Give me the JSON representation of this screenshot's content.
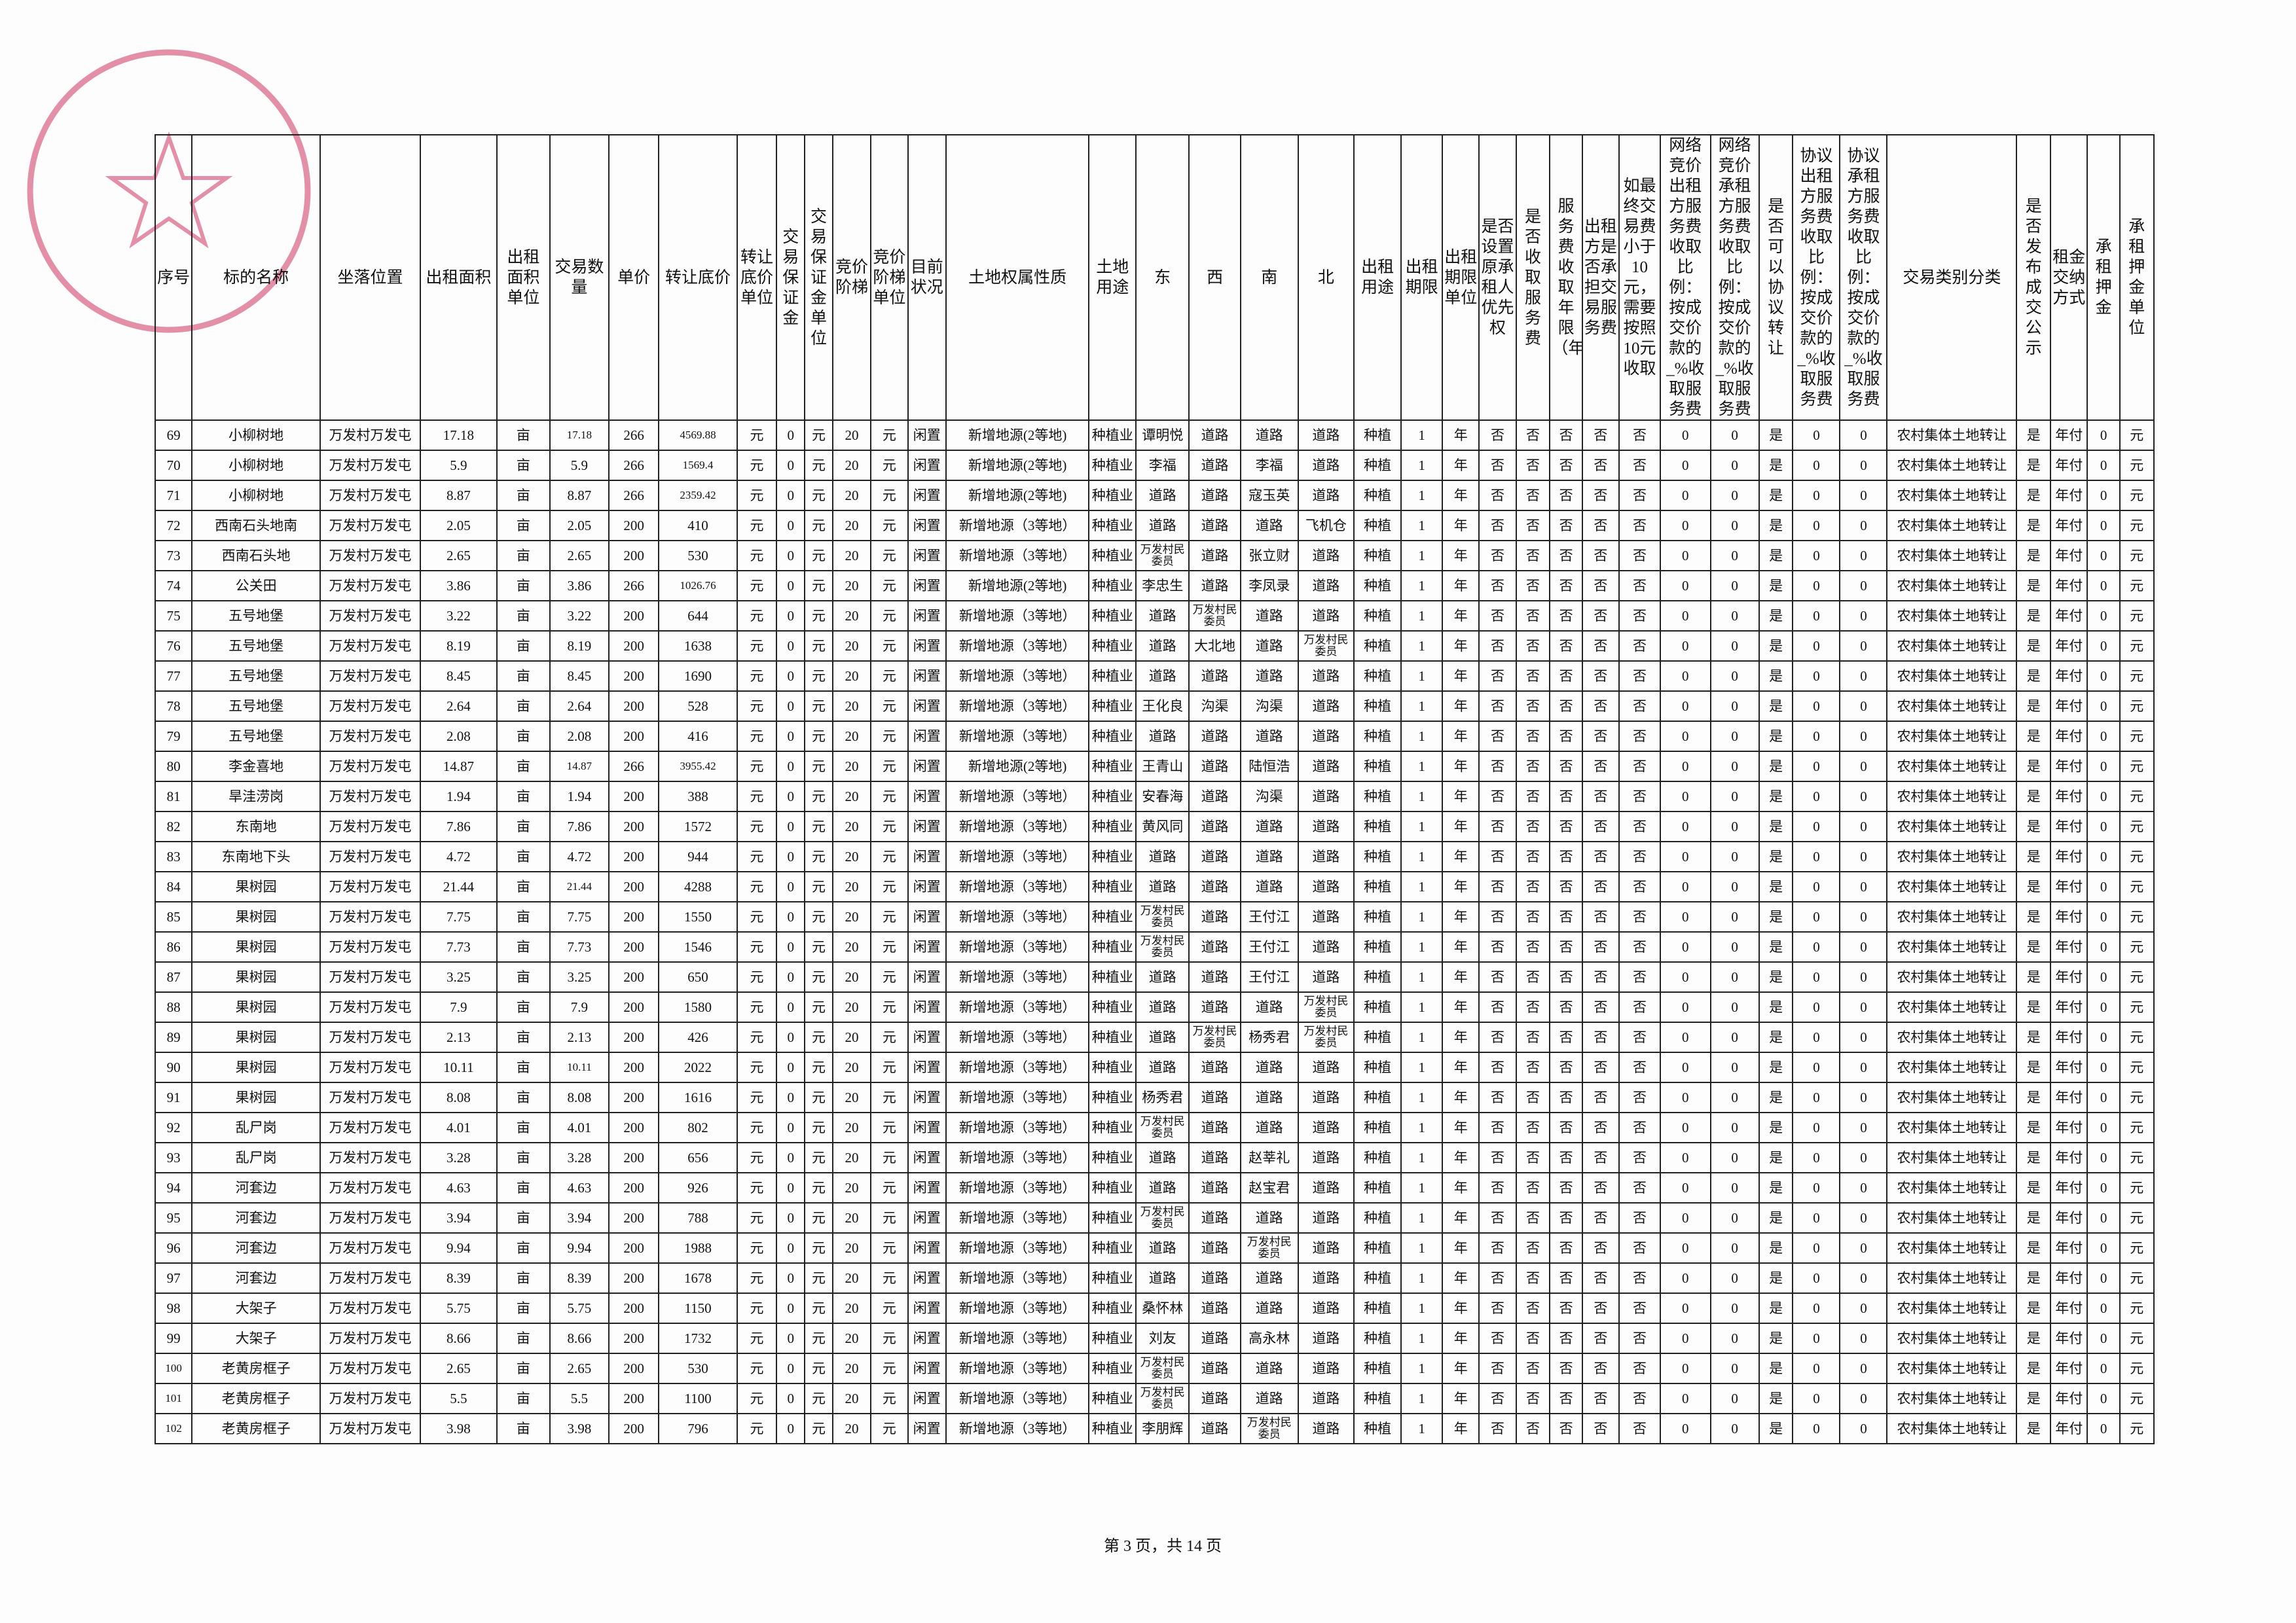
{
  "table": {
    "headers": [
      "序号",
      "标的名称",
      "坐落位置",
      "出租面积",
      "出租面积单位",
      "交易数量",
      "单价",
      "转让底价",
      "转让底价单位",
      "交易保证金",
      "交易保证金单位",
      "竞价阶梯",
      "竞价阶梯单位",
      "目前状况",
      "土地权属性质",
      "土地用途",
      "东",
      "西",
      "南",
      "北",
      "出租用途",
      "出租期限",
      "出租期限单位",
      "是否设置原承租人优先权",
      "是否收取服务费",
      "服务费收取年限（年）",
      "出租方是否承担交易服务费",
      "如最终交易费小于10元，需要按照10元收取",
      "网络竞价出租方服务费收取比例：按成交价款的_%收取服务费",
      "网络竞价承租方服务费收取比例：按成交价款的_%收取服务费",
      "是否可以协议转让",
      "协议出租方服务费收取比例：按成交价款的_%收取服务费",
      "协议承租方服务费收取比例：按成交价款的_%收取服务费",
      "交易类别分类",
      "是否发布成交公示",
      "租金交纳方式",
      "承租押金",
      "承租押金单位"
    ],
    "rows": [
      [
        "69",
        "小柳树地",
        "万发村万发屯",
        "17.18",
        "亩",
        "17.18",
        "266",
        "4569.88",
        "元",
        "0",
        "元",
        "20",
        "元",
        "闲置",
        "新增地源(2等地)",
        "种植业",
        "谭明悦",
        "道路",
        "道路",
        "道路",
        "种植",
        "1",
        "年",
        "否",
        "否",
        "否",
        "否",
        "否",
        "0",
        "0",
        "是",
        "0",
        "0",
        "农村集体土地转让",
        "是",
        "年付",
        "0",
        "元"
      ],
      [
        "70",
        "小柳树地",
        "万发村万发屯",
        "5.9",
        "亩",
        "5.9",
        "266",
        "1569.4",
        "元",
        "0",
        "元",
        "20",
        "元",
        "闲置",
        "新增地源(2等地)",
        "种植业",
        "李福",
        "道路",
        "李福",
        "道路",
        "种植",
        "1",
        "年",
        "否",
        "否",
        "否",
        "否",
        "否",
        "0",
        "0",
        "是",
        "0",
        "0",
        "农村集体土地转让",
        "是",
        "年付",
        "0",
        "元"
      ],
      [
        "71",
        "小柳树地",
        "万发村万发屯",
        "8.87",
        "亩",
        "8.87",
        "266",
        "2359.42",
        "元",
        "0",
        "元",
        "20",
        "元",
        "闲置",
        "新增地源(2等地)",
        "种植业",
        "道路",
        "道路",
        "寇玉英",
        "道路",
        "种植",
        "1",
        "年",
        "否",
        "否",
        "否",
        "否",
        "否",
        "0",
        "0",
        "是",
        "0",
        "0",
        "农村集体土地转让",
        "是",
        "年付",
        "0",
        "元"
      ],
      [
        "72",
        "西南石头地南",
        "万发村万发屯",
        "2.05",
        "亩",
        "2.05",
        "200",
        "410",
        "元",
        "0",
        "元",
        "20",
        "元",
        "闲置",
        "新增地源（3等地）",
        "种植业",
        "道路",
        "道路",
        "道路",
        "飞机仓",
        "种植",
        "1",
        "年",
        "否",
        "否",
        "否",
        "否",
        "否",
        "0",
        "0",
        "是",
        "0",
        "0",
        "农村集体土地转让",
        "是",
        "年付",
        "0",
        "元"
      ],
      [
        "73",
        "西南石头地",
        "万发村万发屯",
        "2.65",
        "亩",
        "2.65",
        "200",
        "530",
        "元",
        "0",
        "元",
        "20",
        "元",
        "闲置",
        "新增地源（3等地）",
        "种植业",
        "万发村民委员",
        "道路",
        "张立财",
        "道路",
        "种植",
        "1",
        "年",
        "否",
        "否",
        "否",
        "否",
        "否",
        "0",
        "0",
        "是",
        "0",
        "0",
        "农村集体土地转让",
        "是",
        "年付",
        "0",
        "元"
      ],
      [
        "74",
        "公关田",
        "万发村万发屯",
        "3.86",
        "亩",
        "3.86",
        "266",
        "1026.76",
        "元",
        "0",
        "元",
        "20",
        "元",
        "闲置",
        "新增地源(2等地)",
        "种植业",
        "李忠生",
        "道路",
        "李凤录",
        "道路",
        "种植",
        "1",
        "年",
        "否",
        "否",
        "否",
        "否",
        "否",
        "0",
        "0",
        "是",
        "0",
        "0",
        "农村集体土地转让",
        "是",
        "年付",
        "0",
        "元"
      ],
      [
        "75",
        "五号地堡",
        "万发村万发屯",
        "3.22",
        "亩",
        "3.22",
        "200",
        "644",
        "元",
        "0",
        "元",
        "20",
        "元",
        "闲置",
        "新增地源（3等地）",
        "种植业",
        "道路",
        "万发村民委员",
        "道路",
        "道路",
        "种植",
        "1",
        "年",
        "否",
        "否",
        "否",
        "否",
        "否",
        "0",
        "0",
        "是",
        "0",
        "0",
        "农村集体土地转让",
        "是",
        "年付",
        "0",
        "元"
      ],
      [
        "76",
        "五号地堡",
        "万发村万发屯",
        "8.19",
        "亩",
        "8.19",
        "200",
        "1638",
        "元",
        "0",
        "元",
        "20",
        "元",
        "闲置",
        "新增地源（3等地）",
        "种植业",
        "道路",
        "大北地",
        "道路",
        "万发村民委员",
        "种植",
        "1",
        "年",
        "否",
        "否",
        "否",
        "否",
        "否",
        "0",
        "0",
        "是",
        "0",
        "0",
        "农村集体土地转让",
        "是",
        "年付",
        "0",
        "元"
      ],
      [
        "77",
        "五号地堡",
        "万发村万发屯",
        "8.45",
        "亩",
        "8.45",
        "200",
        "1690",
        "元",
        "0",
        "元",
        "20",
        "元",
        "闲置",
        "新增地源（3等地）",
        "种植业",
        "道路",
        "道路",
        "道路",
        "道路",
        "种植",
        "1",
        "年",
        "否",
        "否",
        "否",
        "否",
        "否",
        "0",
        "0",
        "是",
        "0",
        "0",
        "农村集体土地转让",
        "是",
        "年付",
        "0",
        "元"
      ],
      [
        "78",
        "五号地堡",
        "万发村万发屯",
        "2.64",
        "亩",
        "2.64",
        "200",
        "528",
        "元",
        "0",
        "元",
        "20",
        "元",
        "闲置",
        "新增地源（3等地）",
        "种植业",
        "王化良",
        "沟渠",
        "沟渠",
        "道路",
        "种植",
        "1",
        "年",
        "否",
        "否",
        "否",
        "否",
        "否",
        "0",
        "0",
        "是",
        "0",
        "0",
        "农村集体土地转让",
        "是",
        "年付",
        "0",
        "元"
      ],
      [
        "79",
        "五号地堡",
        "万发村万发屯",
        "2.08",
        "亩",
        "2.08",
        "200",
        "416",
        "元",
        "0",
        "元",
        "20",
        "元",
        "闲置",
        "新增地源（3等地）",
        "种植业",
        "道路",
        "道路",
        "道路",
        "道路",
        "种植",
        "1",
        "年",
        "否",
        "否",
        "否",
        "否",
        "否",
        "0",
        "0",
        "是",
        "0",
        "0",
        "农村集体土地转让",
        "是",
        "年付",
        "0",
        "元"
      ],
      [
        "80",
        "李金喜地",
        "万发村万发屯",
        "14.87",
        "亩",
        "14.87",
        "266",
        "3955.42",
        "元",
        "0",
        "元",
        "20",
        "元",
        "闲置",
        "新增地源(2等地)",
        "种植业",
        "王青山",
        "道路",
        "陆恒浩",
        "道路",
        "种植",
        "1",
        "年",
        "否",
        "否",
        "否",
        "否",
        "否",
        "0",
        "0",
        "是",
        "0",
        "0",
        "农村集体土地转让",
        "是",
        "年付",
        "0",
        "元"
      ],
      [
        "81",
        "旱洼涝岗",
        "万发村万发屯",
        "1.94",
        "亩",
        "1.94",
        "200",
        "388",
        "元",
        "0",
        "元",
        "20",
        "元",
        "闲置",
        "新增地源（3等地）",
        "种植业",
        "安春海",
        "道路",
        "沟渠",
        "道路",
        "种植",
        "1",
        "年",
        "否",
        "否",
        "否",
        "否",
        "否",
        "0",
        "0",
        "是",
        "0",
        "0",
        "农村集体土地转让",
        "是",
        "年付",
        "0",
        "元"
      ],
      [
        "82",
        "东南地",
        "万发村万发屯",
        "7.86",
        "亩",
        "7.86",
        "200",
        "1572",
        "元",
        "0",
        "元",
        "20",
        "元",
        "闲置",
        "新增地源（3等地）",
        "种植业",
        "黄风同",
        "道路",
        "道路",
        "道路",
        "种植",
        "1",
        "年",
        "否",
        "否",
        "否",
        "否",
        "否",
        "0",
        "0",
        "是",
        "0",
        "0",
        "农村集体土地转让",
        "是",
        "年付",
        "0",
        "元"
      ],
      [
        "83",
        "东南地下头",
        "万发村万发屯",
        "4.72",
        "亩",
        "4.72",
        "200",
        "944",
        "元",
        "0",
        "元",
        "20",
        "元",
        "闲置",
        "新增地源（3等地）",
        "种植业",
        "道路",
        "道路",
        "道路",
        "道路",
        "种植",
        "1",
        "年",
        "否",
        "否",
        "否",
        "否",
        "否",
        "0",
        "0",
        "是",
        "0",
        "0",
        "农村集体土地转让",
        "是",
        "年付",
        "0",
        "元"
      ],
      [
        "84",
        "果树园",
        "万发村万发屯",
        "21.44",
        "亩",
        "21.44",
        "200",
        "4288",
        "元",
        "0",
        "元",
        "20",
        "元",
        "闲置",
        "新增地源（3等地）",
        "种植业",
        "道路",
        "道路",
        "道路",
        "道路",
        "种植",
        "1",
        "年",
        "否",
        "否",
        "否",
        "否",
        "否",
        "0",
        "0",
        "是",
        "0",
        "0",
        "农村集体土地转让",
        "是",
        "年付",
        "0",
        "元"
      ],
      [
        "85",
        "果树园",
        "万发村万发屯",
        "7.75",
        "亩",
        "7.75",
        "200",
        "1550",
        "元",
        "0",
        "元",
        "20",
        "元",
        "闲置",
        "新增地源（3等地）",
        "种植业",
        "万发村民委员",
        "道路",
        "王付江",
        "道路",
        "种植",
        "1",
        "年",
        "否",
        "否",
        "否",
        "否",
        "否",
        "0",
        "0",
        "是",
        "0",
        "0",
        "农村集体土地转让",
        "是",
        "年付",
        "0",
        "元"
      ],
      [
        "86",
        "果树园",
        "万发村万发屯",
        "7.73",
        "亩",
        "7.73",
        "200",
        "1546",
        "元",
        "0",
        "元",
        "20",
        "元",
        "闲置",
        "新增地源（3等地）",
        "种植业",
        "万发村民委员",
        "道路",
        "王付江",
        "道路",
        "种植",
        "1",
        "年",
        "否",
        "否",
        "否",
        "否",
        "否",
        "0",
        "0",
        "是",
        "0",
        "0",
        "农村集体土地转让",
        "是",
        "年付",
        "0",
        "元"
      ],
      [
        "87",
        "果树园",
        "万发村万发屯",
        "3.25",
        "亩",
        "3.25",
        "200",
        "650",
        "元",
        "0",
        "元",
        "20",
        "元",
        "闲置",
        "新增地源（3等地）",
        "种植业",
        "道路",
        "道路",
        "王付江",
        "道路",
        "种植",
        "1",
        "年",
        "否",
        "否",
        "否",
        "否",
        "否",
        "0",
        "0",
        "是",
        "0",
        "0",
        "农村集体土地转让",
        "是",
        "年付",
        "0",
        "元"
      ],
      [
        "88",
        "果树园",
        "万发村万发屯",
        "7.9",
        "亩",
        "7.9",
        "200",
        "1580",
        "元",
        "0",
        "元",
        "20",
        "元",
        "闲置",
        "新增地源（3等地）",
        "种植业",
        "道路",
        "道路",
        "道路",
        "万发村民委员",
        "种植",
        "1",
        "年",
        "否",
        "否",
        "否",
        "否",
        "否",
        "0",
        "0",
        "是",
        "0",
        "0",
        "农村集体土地转让",
        "是",
        "年付",
        "0",
        "元"
      ],
      [
        "89",
        "果树园",
        "万发村万发屯",
        "2.13",
        "亩",
        "2.13",
        "200",
        "426",
        "元",
        "0",
        "元",
        "20",
        "元",
        "闲置",
        "新增地源（3等地）",
        "种植业",
        "道路",
        "万发村民委员",
        "杨秀君",
        "万发村民委员",
        "种植",
        "1",
        "年",
        "否",
        "否",
        "否",
        "否",
        "否",
        "0",
        "0",
        "是",
        "0",
        "0",
        "农村集体土地转让",
        "是",
        "年付",
        "0",
        "元"
      ],
      [
        "90",
        "果树园",
        "万发村万发屯",
        "10.11",
        "亩",
        "10.11",
        "200",
        "2022",
        "元",
        "0",
        "元",
        "20",
        "元",
        "闲置",
        "新增地源（3等地）",
        "种植业",
        "道路",
        "道路",
        "道路",
        "道路",
        "种植",
        "1",
        "年",
        "否",
        "否",
        "否",
        "否",
        "否",
        "0",
        "0",
        "是",
        "0",
        "0",
        "农村集体土地转让",
        "是",
        "年付",
        "0",
        "元"
      ],
      [
        "91",
        "果树园",
        "万发村万发屯",
        "8.08",
        "亩",
        "8.08",
        "200",
        "1616",
        "元",
        "0",
        "元",
        "20",
        "元",
        "闲置",
        "新增地源（3等地）",
        "种植业",
        "杨秀君",
        "道路",
        "道路",
        "道路",
        "种植",
        "1",
        "年",
        "否",
        "否",
        "否",
        "否",
        "否",
        "0",
        "0",
        "是",
        "0",
        "0",
        "农村集体土地转让",
        "是",
        "年付",
        "0",
        "元"
      ],
      [
        "92",
        "乱尸岗",
        "万发村万发屯",
        "4.01",
        "亩",
        "4.01",
        "200",
        "802",
        "元",
        "0",
        "元",
        "20",
        "元",
        "闲置",
        "新增地源（3等地）",
        "种植业",
        "万发村民委员",
        "道路",
        "道路",
        "道路",
        "种植",
        "1",
        "年",
        "否",
        "否",
        "否",
        "否",
        "否",
        "0",
        "0",
        "是",
        "0",
        "0",
        "农村集体土地转让",
        "是",
        "年付",
        "0",
        "元"
      ],
      [
        "93",
        "乱尸岗",
        "万发村万发屯",
        "3.28",
        "亩",
        "3.28",
        "200",
        "656",
        "元",
        "0",
        "元",
        "20",
        "元",
        "闲置",
        "新增地源（3等地）",
        "种植业",
        "道路",
        "道路",
        "赵莘礼",
        "道路",
        "种植",
        "1",
        "年",
        "否",
        "否",
        "否",
        "否",
        "否",
        "0",
        "0",
        "是",
        "0",
        "0",
        "农村集体土地转让",
        "是",
        "年付",
        "0",
        "元"
      ],
      [
        "94",
        "河套边",
        "万发村万发屯",
        "4.63",
        "亩",
        "4.63",
        "200",
        "926",
        "元",
        "0",
        "元",
        "20",
        "元",
        "闲置",
        "新增地源（3等地）",
        "种植业",
        "道路",
        "道路",
        "赵宝君",
        "道路",
        "种植",
        "1",
        "年",
        "否",
        "否",
        "否",
        "否",
        "否",
        "0",
        "0",
        "是",
        "0",
        "0",
        "农村集体土地转让",
        "是",
        "年付",
        "0",
        "元"
      ],
      [
        "95",
        "河套边",
        "万发村万发屯",
        "3.94",
        "亩",
        "3.94",
        "200",
        "788",
        "元",
        "0",
        "元",
        "20",
        "元",
        "闲置",
        "新增地源（3等地）",
        "种植业",
        "万发村民委员",
        "道路",
        "道路",
        "道路",
        "种植",
        "1",
        "年",
        "否",
        "否",
        "否",
        "否",
        "否",
        "0",
        "0",
        "是",
        "0",
        "0",
        "农村集体土地转让",
        "是",
        "年付",
        "0",
        "元"
      ],
      [
        "96",
        "河套边",
        "万发村万发屯",
        "9.94",
        "亩",
        "9.94",
        "200",
        "1988",
        "元",
        "0",
        "元",
        "20",
        "元",
        "闲置",
        "新增地源（3等地）",
        "种植业",
        "道路",
        "道路",
        "万发村民委员",
        "道路",
        "种植",
        "1",
        "年",
        "否",
        "否",
        "否",
        "否",
        "否",
        "0",
        "0",
        "是",
        "0",
        "0",
        "农村集体土地转让",
        "是",
        "年付",
        "0",
        "元"
      ],
      [
        "97",
        "河套边",
        "万发村万发屯",
        "8.39",
        "亩",
        "8.39",
        "200",
        "1678",
        "元",
        "0",
        "元",
        "20",
        "元",
        "闲置",
        "新增地源（3等地）",
        "种植业",
        "道路",
        "道路",
        "道路",
        "道路",
        "种植",
        "1",
        "年",
        "否",
        "否",
        "否",
        "否",
        "否",
        "0",
        "0",
        "是",
        "0",
        "0",
        "农村集体土地转让",
        "是",
        "年付",
        "0",
        "元"
      ],
      [
        "98",
        "大架子",
        "万发村万发屯",
        "5.75",
        "亩",
        "5.75",
        "200",
        "1150",
        "元",
        "0",
        "元",
        "20",
        "元",
        "闲置",
        "新增地源（3等地）",
        "种植业",
        "桑怀林",
        "道路",
        "道路",
        "道路",
        "种植",
        "1",
        "年",
        "否",
        "否",
        "否",
        "否",
        "否",
        "0",
        "0",
        "是",
        "0",
        "0",
        "农村集体土地转让",
        "是",
        "年付",
        "0",
        "元"
      ],
      [
        "99",
        "大架子",
        "万发村万发屯",
        "8.66",
        "亩",
        "8.66",
        "200",
        "1732",
        "元",
        "0",
        "元",
        "20",
        "元",
        "闲置",
        "新增地源（3等地）",
        "种植业",
        "刘友",
        "道路",
        "高永林",
        "道路",
        "种植",
        "1",
        "年",
        "否",
        "否",
        "否",
        "否",
        "否",
        "0",
        "0",
        "是",
        "0",
        "0",
        "农村集体土地转让",
        "是",
        "年付",
        "0",
        "元"
      ],
      [
        "100",
        "老黄房框子",
        "万发村万发屯",
        "2.65",
        "亩",
        "2.65",
        "200",
        "530",
        "元",
        "0",
        "元",
        "20",
        "元",
        "闲置",
        "新增地源（3等地）",
        "种植业",
        "万发村民委员",
        "道路",
        "道路",
        "道路",
        "种植",
        "1",
        "年",
        "否",
        "否",
        "否",
        "否",
        "否",
        "0",
        "0",
        "是",
        "0",
        "0",
        "农村集体土地转让",
        "是",
        "年付",
        "0",
        "元"
      ],
      [
        "101",
        "老黄房框子",
        "万发村万发屯",
        "5.5",
        "亩",
        "5.5",
        "200",
        "1100",
        "元",
        "0",
        "元",
        "20",
        "元",
        "闲置",
        "新增地源（3等地）",
        "种植业",
        "万发村民委员",
        "道路",
        "道路",
        "道路",
        "种植",
        "1",
        "年",
        "否",
        "否",
        "否",
        "否",
        "否",
        "0",
        "0",
        "是",
        "0",
        "0",
        "农村集体土地转让",
        "是",
        "年付",
        "0",
        "元"
      ],
      [
        "102",
        "老黄房框子",
        "万发村万发屯",
        "3.98",
        "亩",
        "3.98",
        "200",
        "796",
        "元",
        "0",
        "元",
        "20",
        "元",
        "闲置",
        "新增地源（3等地）",
        "种植业",
        "李朋辉",
        "道路",
        "万发村民委员",
        "道路",
        "种植",
        "1",
        "年",
        "否",
        "否",
        "否",
        "否",
        "否",
        "0",
        "0",
        "是",
        "0",
        "0",
        "农村集体土地转让",
        "是",
        "年付",
        "0",
        "元"
      ]
    ]
  },
  "footer": "第 3 页，共 14 页"
}
